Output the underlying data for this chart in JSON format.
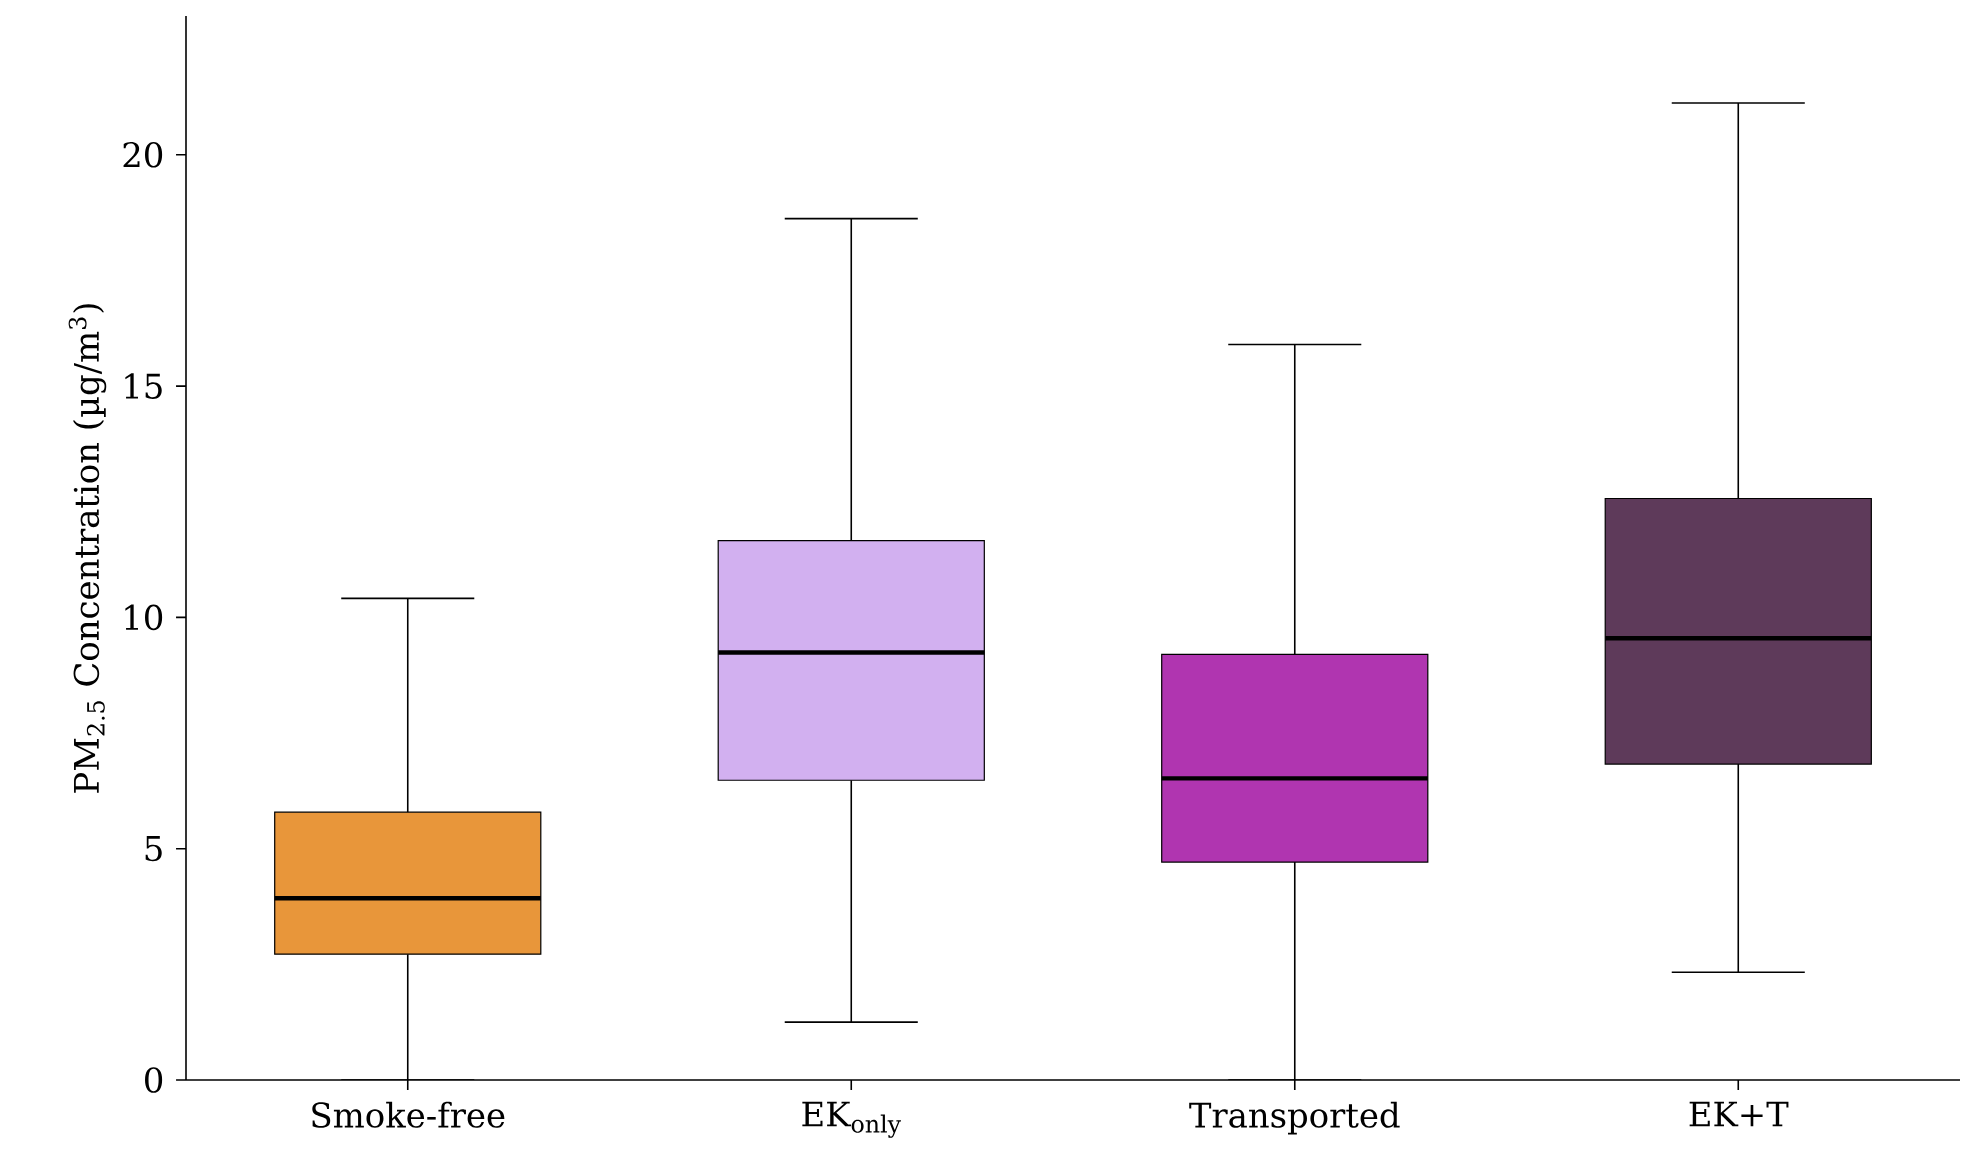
{
  "chart_data": {
    "type": "box",
    "ylabel": "PM$_{2.5}$ Concentration (µg/m$^{3}$)",
    "categories": [
      "Smoke-free",
      "EK$_{only}$",
      "Transported",
      "EK+T"
    ],
    "colors": [
      "#e8963a",
      "#d2b0f0",
      "#b035b0",
      "#5e3a5a"
    ],
    "boxes": [
      {
        "low": 0,
        "q1": 2.72,
        "median": 3.93,
        "q3": 5.79,
        "high": 10.41
      },
      {
        "low": 1.25,
        "q1": 6.48,
        "median": 9.24,
        "q3": 11.66,
        "high": 18.62
      },
      {
        "low": 0,
        "q1": 4.71,
        "median": 6.52,
        "q3": 9.2,
        "high": 15.9
      },
      {
        "low": 2.33,
        "q1": 6.83,
        "median": 9.55,
        "q3": 12.57,
        "high": 21.12
      }
    ],
    "ylim": [
      0,
      23
    ],
    "yticks": [
      0,
      5,
      10,
      15,
      20
    ]
  }
}
